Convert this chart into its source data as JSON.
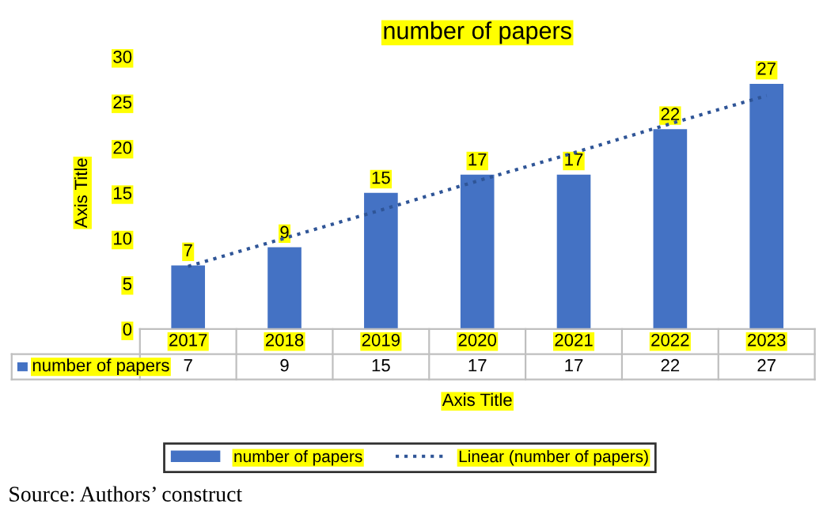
{
  "chart_data": {
    "type": "bar",
    "title": "number of papers",
    "xlabel": "Axis Title",
    "ylabel": "Axis Title",
    "categories": [
      "2017",
      "2018",
      "2019",
      "2020",
      "2021",
      "2022",
      "2023"
    ],
    "series": [
      {
        "name": "number of papers",
        "color": "#4472c4",
        "values": [
          7,
          9,
          15,
          17,
          17,
          22,
          27
        ],
        "value_labels": [
          "7",
          "9",
          "15",
          "17",
          "17",
          "22",
          "27"
        ]
      },
      {
        "name": "Linear (number of papers)",
        "type": "line",
        "color": "#2f5597",
        "line_style": "dotted",
        "values": [
          6.9,
          10.0,
          13.1,
          16.3,
          19.4,
          22.6,
          25.7
        ]
      }
    ],
    "ylim": [
      0,
      30
    ],
    "yticks": [
      0,
      5,
      10,
      15,
      20,
      25,
      30
    ],
    "grid": false,
    "legend": "bottom",
    "annotations": [
      "Source: Authors’ construct"
    ]
  }
}
